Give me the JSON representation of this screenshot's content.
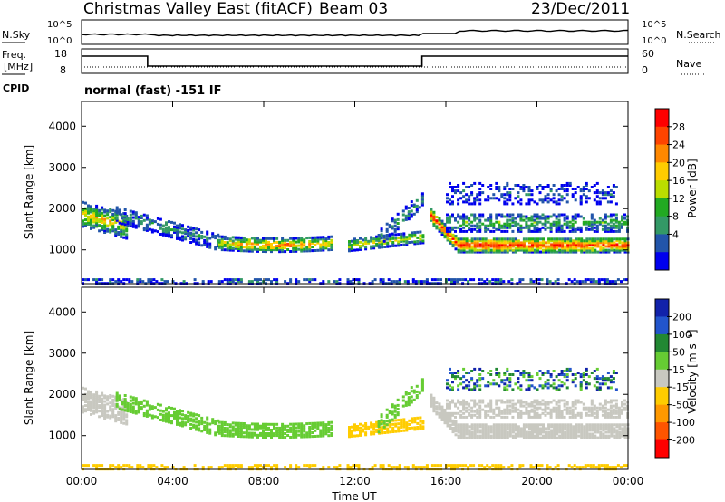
{
  "header": {
    "title": "Christmas Valley East (fitACF)",
    "beam": "Beam 03",
    "date": "23/Dec/2011"
  },
  "status_panel": {
    "left_label": "N.Sky",
    "left_ticks": [
      "10^5",
      "10^0"
    ],
    "right_label": "N.Search",
    "right_ticks": [
      "10^5",
      "10^0"
    ]
  },
  "freq_panel": {
    "left_label_top": "Freq.",
    "left_label_bottom": "[MHz]",
    "left_ticks": [
      "18",
      "8"
    ],
    "right_label": "Nave",
    "right_ticks": [
      "60",
      "0"
    ]
  },
  "cpid": {
    "label": "CPID",
    "value": "normal (fast) -151 IF"
  },
  "chart_data": [
    {
      "type": "heatmap",
      "name": "power",
      "xlabel": "",
      "ylabel": "Slant Range [km]",
      "x_ticks": [
        "00:00",
        "04:00",
        "08:00",
        "12:00",
        "16:00",
        "20:00",
        "00:00"
      ],
      "xlim_hours": [
        0,
        24
      ],
      "y_ticks": [
        1000,
        2000,
        3000,
        4000
      ],
      "ylim_km": [
        180,
        4600
      ],
      "colorbar": {
        "label": "Power [dB]",
        "ticks": [
          "28",
          "24",
          "20",
          "16",
          "12",
          "8",
          "4"
        ],
        "colors": [
          "#ff0000",
          "#ff4400",
          "#ff8800",
          "#ffcc00",
          "#bbdd00",
          "#22aa22",
          "#339966",
          "#2255aa",
          "#0000ee"
        ]
      }
    },
    {
      "type": "heatmap",
      "name": "velocity",
      "xlabel": "Time UT",
      "ylabel": "Slant Range [km]",
      "x_ticks": [
        "00:00",
        "04:00",
        "08:00",
        "12:00",
        "16:00",
        "20:00",
        "00:00"
      ],
      "xlim_hours": [
        0,
        24
      ],
      "y_ticks": [
        1000,
        2000,
        3000,
        4000
      ],
      "ylim_km": [
        180,
        4600
      ],
      "colorbar": {
        "label": "Velocity [m s⁻¹]",
        "ticks": [
          "200",
          "100",
          "50",
          "15",
          "-15",
          "-50",
          "-100",
          "-200"
        ],
        "colors": [
          "#1122aa",
          "#2255cc",
          "#228833",
          "#66cc33",
          "#c8c8c0",
          "#ffcc00",
          "#ff9900",
          "#ff5500",
          "#ff0000"
        ]
      }
    }
  ]
}
